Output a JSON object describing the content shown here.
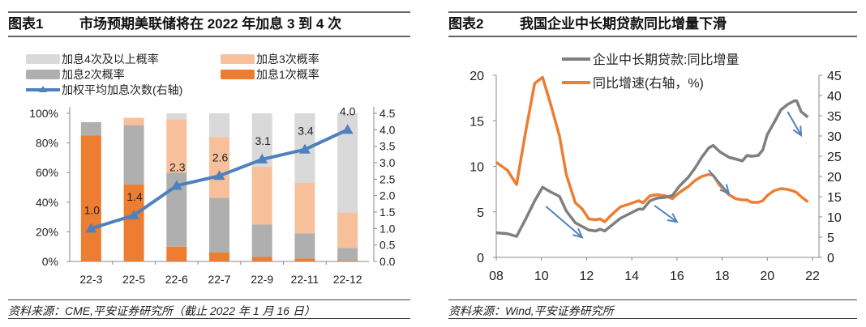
{
  "chart_data": [
    {
      "type": "bar",
      "stacked": true,
      "label": "图表1",
      "title": "市场预期美联储将在 2022 年加息 3 到 4 次",
      "categories": [
        "22-3",
        "22-5",
        "22-6",
        "22-7",
        "22-9",
        "22-11",
        "22-12"
      ],
      "series": [
        {
          "name": "加息1次概率",
          "color": "#ed7d31",
          "values": [
            85,
            52,
            10,
            6,
            3,
            2,
            0.5
          ]
        },
        {
          "name": "加息2次概率",
          "color": "#afafaf",
          "values": [
            9,
            40,
            50,
            37,
            22,
            17,
            8.5
          ]
        },
        {
          "name": "加息3次概率",
          "color": "#f8c09a",
          "values": [
            0,
            5,
            36,
            41,
            39,
            34,
            24
          ]
        },
        {
          "name": "加息4次及以上概率",
          "color": "#d9d9d9",
          "values": [
            0,
            0,
            4,
            16,
            36,
            47,
            67
          ]
        }
      ],
      "line": {
        "name": "加权平均加息次数(右轴)",
        "color": "#4f81bd",
        "values": [
          1.0,
          1.4,
          2.3,
          2.6,
          3.1,
          3.4,
          4.0
        ],
        "labels": [
          "1.0",
          "1.4",
          "2.3",
          "2.6",
          "3.1",
          "3.4",
          "4.0"
        ]
      },
      "legend_order": [
        "加息4次及以上概率",
        "加息3次概率",
        "加息2次概率",
        "加息1次概率",
        "加权平均加息次数(右轴)"
      ],
      "ylim": [
        0,
        100
      ],
      "yticks": [
        "0%",
        "20%",
        "40%",
        "60%",
        "80%",
        "100%"
      ],
      "y2lim": [
        0,
        4.5
      ],
      "y2ticks": [
        "0.0",
        "0.5",
        "1.0",
        "1.5",
        "2.0",
        "2.5",
        "3.0",
        "3.5",
        "4.0",
        "4.5"
      ],
      "legend_position": "top-left",
      "source": "资料来源：CME,平安证券研究所（截止 2022 年 1 月 16 日）"
    },
    {
      "type": "line",
      "label": "图表2",
      "title": "我国企业中长期贷款同比增量下滑",
      "x": [
        2008,
        2008.5,
        2008.9,
        2009.3,
        2009.7,
        2010.05,
        2010.4,
        2010.8,
        2011.1,
        2011.5,
        2011.8,
        2012.1,
        2012.4,
        2012.6,
        2012.8,
        2013.1,
        2013.5,
        2013.9,
        2014.3,
        2014.5,
        2014.8,
        2015.1,
        2015.5,
        2015.8,
        2016.1,
        2016.5,
        2016.8,
        2017.1,
        2017.4,
        2017.6,
        2017.9,
        2018.3,
        2018.6,
        2018.9,
        2019.1,
        2019.3,
        2019.6,
        2019.8,
        2020.0,
        2020.3,
        2020.6,
        2020.9,
        2021.2,
        2021.3,
        2021.5,
        2021.8
      ],
      "series": [
        {
          "name": "企业中长期贷款:同比增量",
          "axis": "left",
          "color": "#7f7f7f",
          "values": [
            2.7,
            2.6,
            2.3,
            4.2,
            6.2,
            7.7,
            7.2,
            6.7,
            5.1,
            3.8,
            3.4,
            3.0,
            2.9,
            3.1,
            2.9,
            3.5,
            4.3,
            4.8,
            5.3,
            5.3,
            6.2,
            6.5,
            6.6,
            6.8,
            7.8,
            8.8,
            9.8,
            11.0,
            12.0,
            12.3,
            11.6,
            11.0,
            10.8,
            10.6,
            11.2,
            11.1,
            11.2,
            11.8,
            13.5,
            14.8,
            16.2,
            16.8,
            17.2,
            17.2,
            16.0,
            15.4
          ]
        },
        {
          "name": "同比增速(右轴，%)",
          "axis": "right",
          "color": "#ed7d31",
          "values": [
            23.5,
            21.5,
            18.0,
            31.0,
            43.0,
            44.5,
            38.0,
            30.0,
            20.5,
            13.5,
            12.0,
            9.5,
            9.3,
            9.5,
            8.8,
            10.5,
            12.5,
            13.2,
            14.0,
            13.5,
            15.2,
            15.5,
            15.2,
            14.5,
            16.0,
            17.5,
            19.0,
            20.0,
            20.5,
            20.3,
            17.8,
            15.5,
            14.5,
            14.2,
            14.2,
            13.6,
            13.6,
            14.0,
            15.3,
            16.5,
            17.0,
            16.8,
            16.3,
            16.0,
            15.0,
            13.7
          ]
        }
      ],
      "arrows": 4,
      "xlim": [
        2008,
        2022
      ],
      "xticks": [
        "08",
        "10",
        "12",
        "14",
        "16",
        "18",
        "20",
        "22"
      ],
      "ylim": [
        0,
        20
      ],
      "yticks": [
        "0",
        "5",
        "10",
        "15",
        "20"
      ],
      "y2lim": [
        0,
        45
      ],
      "y2ticks": [
        "0",
        "5",
        "10",
        "15",
        "20",
        "25",
        "30",
        "35",
        "40",
        "45"
      ],
      "legend_position": "top-center",
      "source": "资料来源：Wind,平安证券研究所"
    }
  ]
}
